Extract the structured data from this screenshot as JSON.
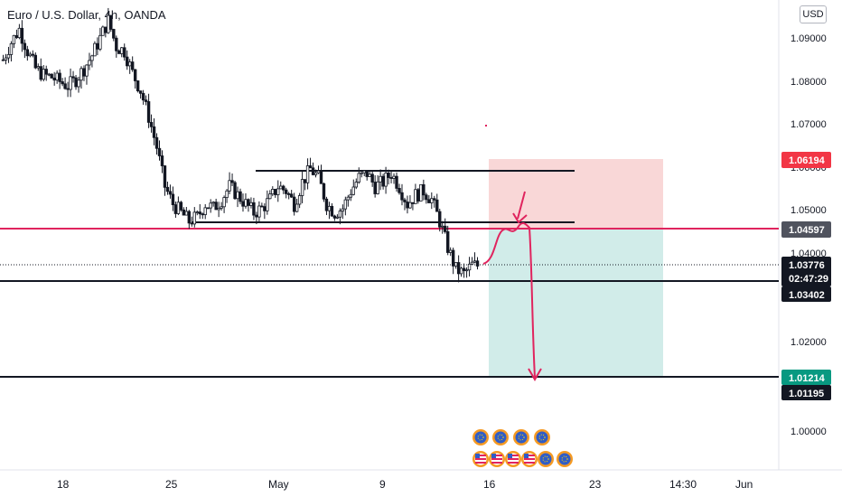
{
  "header": {
    "title": "Euro / U.S. Dollar, 4h, OANDA",
    "currency": "USD"
  },
  "colors": {
    "candle": "#131722",
    "stop_zone": "#f7c9c9",
    "target_zone": "#c5e7e3",
    "magenta": "#e0245e",
    "level_black": "#131722",
    "badge_red": "#f23645",
    "badge_gray": "#50535e",
    "badge_dark": "#131722",
    "badge_green": "#089981"
  },
  "chart_data": {
    "type": "candlestick",
    "symbol": "EURUSD",
    "timeframe": "4h",
    "ylim": [
      0.993,
      1.097
    ],
    "y_ticks": [
      "1.09000",
      "1.08000",
      "1.07000",
      "1.06000",
      "1.05000",
      "1.04000",
      "1.02000",
      "1.00000"
    ],
    "x_ticks": [
      "18",
      "25",
      "May",
      "9",
      "16",
      "23",
      "14:30",
      "Jun"
    ],
    "price_badges": [
      {
        "label": "1.06194",
        "value": 1.06194,
        "kind": "red"
      },
      {
        "label": "1.04597",
        "value": 1.04597,
        "kind": "gray"
      },
      {
        "label": "1.03776",
        "value": 1.03776,
        "kind": "dark",
        "countdown": "02:47:29"
      },
      {
        "label": "1.03402",
        "value": 1.03402,
        "kind": "dark"
      },
      {
        "label": "1.01214",
        "value": 1.01214,
        "kind": "green"
      },
      {
        "label": "1.01195",
        "value": 1.01195,
        "kind": "dark"
      }
    ],
    "close_path": [
      1.085,
      1.089,
      1.092,
      1.087,
      1.083,
      1.0815,
      1.081,
      1.08,
      1.079,
      1.0805,
      1.083,
      1.086,
      1.09,
      1.094,
      1.088,
      1.087,
      1.082,
      1.078,
      1.072,
      1.065,
      1.056,
      1.052,
      1.05,
      1.048,
      1.049,
      1.052,
      1.051,
      1.053,
      1.056,
      1.054,
      1.052,
      1.05,
      1.051,
      1.053,
      1.056,
      1.055,
      1.052,
      1.057,
      1.06,
      1.058,
      1.052,
      1.05,
      1.051,
      1.055,
      1.058,
      1.059,
      1.056,
      1.057,
      1.059,
      1.056,
      1.052,
      1.054,
      1.055,
      1.053,
      1.048,
      1.042,
      1.037,
      1.036,
      1.038,
      1.0378
    ]
  }
}
